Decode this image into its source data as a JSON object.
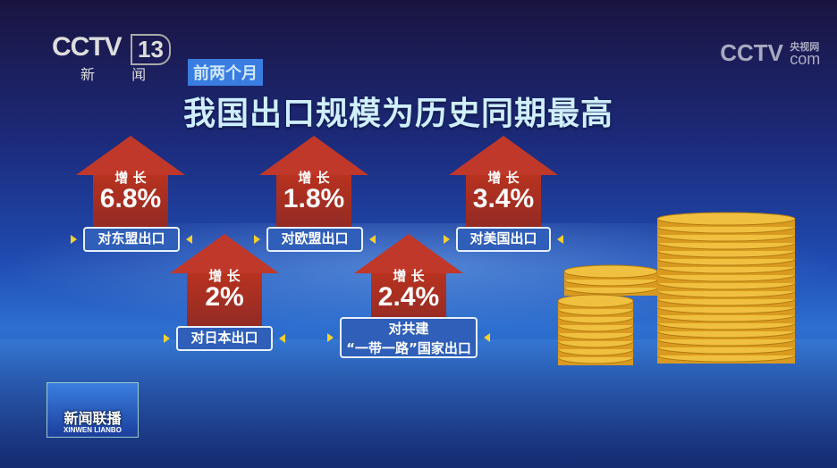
{
  "channel": {
    "logo": "CCTV",
    "number": "13",
    "name": "新 闻"
  },
  "watermark": {
    "logo": "CCTV",
    "sub": "央视网",
    "domain": "com"
  },
  "tag": "前两个月",
  "title": "我国出口规模为历史同期最高",
  "items": [
    {
      "growth_label": "增 长",
      "value": "6.8%",
      "target": "对东盟出口"
    },
    {
      "growth_label": "增 长",
      "value": "1.8%",
      "target": "对欧盟出口"
    },
    {
      "growth_label": "增 长",
      "value": "3.4%",
      "target": "对美国出口"
    },
    {
      "growth_label": "增 长",
      "value": "2%",
      "target": "对日本出口"
    },
    {
      "growth_label": "增 长",
      "value": "2.4%",
      "target": "对共建\n“一带一路”国家出口"
    }
  ],
  "program": {
    "name": "新闻联播",
    "pinyin": "XINWEN LIANBO"
  },
  "colors": {
    "arrow": "#c0382a",
    "label": "#2f5fb8",
    "accent": "#f4d030",
    "coin": "#e8b830"
  }
}
